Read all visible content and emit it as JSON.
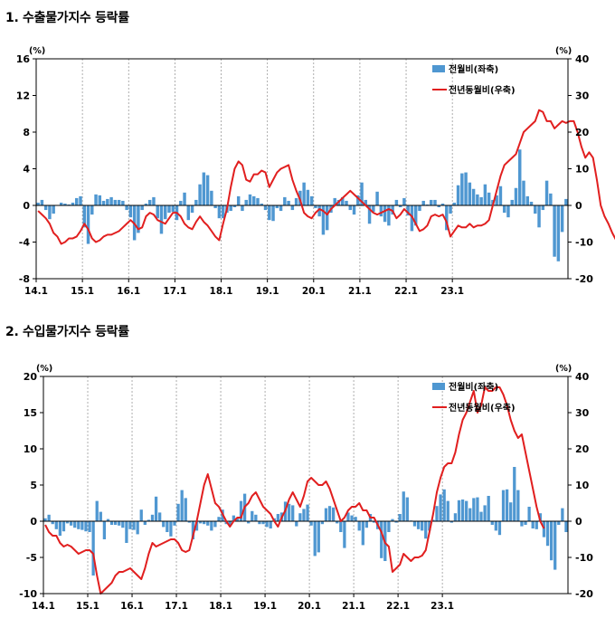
{
  "sections": [
    {
      "title": "1. 수출물가지수 등락률"
    },
    {
      "title": "2. 수입물가지수 등락률"
    }
  ],
  "colors": {
    "bar": "#4F97D1",
    "line": "#E11F1F",
    "grid": "#9a9a9a"
  },
  "chart_data": [
    {
      "type": "bar+line",
      "title": "1. 수출물가지수 등락률",
      "left_unit": "(%)",
      "right_unit": "(%)",
      "x_tick_labels": [
        "14.1",
        "15.1",
        "16.1",
        "17.1",
        "18.1",
        "19.1",
        "20.1",
        "21.1",
        "22.1",
        "23.1"
      ],
      "y_left": {
        "min": -8,
        "max": 16,
        "ticks": [
          16,
          12,
          8,
          4,
          0,
          -4,
          -8
        ]
      },
      "y_right": {
        "min": -20,
        "max": 40,
        "ticks": [
          40,
          30,
          20,
          10,
          0,
          -10,
          -20
        ]
      },
      "grid_vertical_dashed": true,
      "legend_position": "top-right",
      "legend": {
        "bar": "전월비(좌축)",
        "line": "전년동월비(우축)"
      },
      "series": [
        {
          "name": "전월비(좌축)",
          "axis": "left",
          "kind": "bar",
          "values": [
            0.3,
            0.6,
            -0.5,
            -1.5,
            -0.9,
            0,
            0.3,
            0.2,
            0.1,
            0.3,
            0.8,
            1.0,
            -2.4,
            -4.2,
            -1.0,
            1.2,
            1.1,
            0.5,
            0.7,
            0.9,
            0.6,
            0.6,
            0.5,
            -0.5,
            -1.3,
            -3.8,
            -3.0,
            -0.5,
            0.2,
            0.6,
            0.9,
            -1.4,
            -3.1,
            -1.5,
            -0.8,
            -0.7,
            -1.6,
            0.5,
            1.4,
            -1.6,
            -0.8,
            0.6,
            2.3,
            3.6,
            3.3,
            1.6,
            -0.3,
            -1.4,
            -1.4,
            -0.8,
            -0.6,
            -0.2,
            1.0,
            -0.6,
            0.6,
            1.2,
            1.0,
            0.8,
            0.2,
            -0.5,
            -1.6,
            -1.7,
            -0.3,
            -0.6,
            0.9,
            0.5,
            -0.5,
            0.8,
            1.6,
            2.5,
            1.7,
            1.0,
            -0.3,
            -1.2,
            -3.2,
            -2.7,
            -0.8,
            0.8,
            0.6,
            0.9,
            0.5,
            -0.5,
            -1.0,
            1.1,
            2.5,
            0.6,
            -2.0,
            -0.7,
            1.5,
            -1.2,
            -1.8,
            -2.2,
            -1.0,
            0.6,
            -0.2,
            0.8,
            -1.1,
            -2.8,
            -2.2,
            -0.6,
            0.5,
            0.1,
            0.6,
            0.6,
            -0.2,
            0.2,
            -2.7,
            -0.9,
            0.3,
            2.2,
            3.5,
            3.6,
            2.5,
            1.8,
            1.2,
            0.9,
            2.3,
            1.4,
            0.6,
            1.1,
            2.1,
            -0.8,
            -1.3,
            0.6,
            1.9,
            6.1,
            2.7,
            1.0,
            0.4,
            -0.9,
            -2.4,
            -0.5,
            2.7,
            1.3,
            -5.6,
            -6.1,
            -2.9,
            0.7
          ]
        },
        {
          "name": "전년동월비(우축)",
          "axis": "right",
          "kind": "line",
          "values": [
            -1.5,
            -2.5,
            -3.5,
            -5,
            -7.5,
            -8.5,
            -10.5,
            -10,
            -9,
            -9,
            -8.5,
            -7,
            -5,
            -6.5,
            -9,
            -10,
            -9.5,
            -8.5,
            -8,
            -8,
            -7.5,
            -7,
            -6,
            -5,
            -4,
            -5,
            -6.5,
            -6,
            -3,
            -2,
            -2.5,
            -4,
            -4.5,
            -5,
            -3.5,
            -2,
            -2,
            -3,
            -5,
            -6,
            -6.5,
            -4.5,
            -3,
            -4.5,
            -5.5,
            -7,
            -8.5,
            -9.5,
            -5,
            -1,
            5,
            10,
            12,
            11,
            7,
            6.5,
            8.5,
            8.5,
            9.5,
            9,
            5,
            7,
            9,
            10,
            10.5,
            11,
            7,
            4,
            1.5,
            -2,
            -3,
            -3.5,
            -2,
            -1,
            -1.5,
            -2.5,
            -1,
            0,
            1,
            2,
            3,
            4,
            3,
            2,
            1,
            0,
            -1,
            -2,
            -2.5,
            -2,
            -1.5,
            -1,
            -1.5,
            -3.5,
            -2.5,
            -1,
            -2,
            -3,
            -5,
            -7,
            -6.5,
            -5.5,
            -3,
            -2.5,
            -3,
            -2.5,
            -4.5,
            -8.5,
            -7,
            -5.5,
            -6,
            -6,
            -5,
            -6,
            -5.5,
            -5.5,
            -5,
            -4,
            0,
            4,
            8,
            11,
            12,
            13,
            14,
            17,
            20,
            21,
            22,
            23,
            26,
            25.5,
            23,
            23,
            21,
            22,
            23,
            22.5,
            23,
            23,
            20,
            16,
            13,
            14.5,
            13,
            7,
            0,
            -3,
            -5,
            -7.5,
            -9.5,
            -10
          ]
        }
      ]
    },
    {
      "type": "bar+line",
      "title": "2. 수입물가지수 등락률",
      "left_unit": "(%)",
      "right_unit": "(%)",
      "x_tick_labels": [
        "14.1",
        "15.1",
        "16.1",
        "17.1",
        "18.1",
        "19.1",
        "20.1",
        "21.1",
        "22.1",
        "23.1"
      ],
      "y_left": {
        "min": -10,
        "max": 20,
        "ticks": [
          20,
          15,
          10,
          5,
          0,
          -5,
          -10
        ]
      },
      "y_right": {
        "min": -20,
        "max": 40,
        "ticks": [
          40,
          30,
          20,
          10,
          0,
          -10,
          -20
        ]
      },
      "grid_vertical_dashed": true,
      "legend_position": "top-right",
      "legend": {
        "bar": "전월비(좌축)",
        "line": "전년동월비(우축)"
      },
      "series": [
        {
          "name": "전월비(좌축)",
          "axis": "left",
          "kind": "bar",
          "values": [
            0.4,
            0.9,
            -0.4,
            -1.1,
            -2.0,
            -1.4,
            -0.3,
            -0.6,
            -0.9,
            -1.1,
            -1.2,
            -1.4,
            -1.5,
            -7.5,
            2.8,
            1.3,
            -2.5,
            0.3,
            -0.5,
            -0.5,
            -0.6,
            -0.9,
            -3.0,
            -1.1,
            -1.2,
            -1.8,
            1.6,
            -0.5,
            0.2,
            0.9,
            3.4,
            1.2,
            -0.8,
            -1.5,
            -2.1,
            -0.6,
            2.4,
            4.3,
            3.2,
            -0.2,
            -2.5,
            -1.3,
            -0.3,
            -0.4,
            -0.6,
            -1.3,
            -0.8,
            0.6,
            1.6,
            -0.4,
            -0.6,
            0.8,
            0.5,
            2.8,
            3.8,
            -0.3,
            1.4,
            0.9,
            -0.4,
            -0.4,
            -0.8,
            -1.0,
            0.4,
            1.0,
            1.2,
            2.7,
            2.4,
            2.2,
            -0.7,
            1.1,
            1.7,
            2.3,
            -0.6,
            -4.8,
            -4.3,
            -0.4,
            1.8,
            2.1,
            1.9,
            -0.3,
            -1.5,
            -3.7,
            1.2,
            0.8,
            0.6,
            -1.3,
            -3.3,
            -0.9,
            1.0,
            -0.2,
            -1.1,
            -5.1,
            -5.5,
            -1.5,
            0.3,
            -0.2,
            1.0,
            4.1,
            3.3,
            0.1,
            -0.7,
            -1.1,
            -1.3,
            -2.4,
            -1.3,
            0.2,
            2.1,
            3.7,
            4.4,
            2.8,
            -0.2,
            1.1,
            2.9,
            3.0,
            2.8,
            1.8,
            3.2,
            3.3,
            1.3,
            2.2,
            3.5,
            -0.5,
            -1.3,
            -1.9,
            4.3,
            4.4,
            2.6,
            7.5,
            4.3,
            -0.7,
            -0.5,
            2.0,
            -1.0,
            -1.1,
            1.1,
            -2.2,
            -3.4,
            -5.4,
            -6.7,
            -0.5,
            1.8,
            -1.5
          ]
        },
        {
          "name": "전년동월비(우축)",
          "axis": "right",
          "kind": "line",
          "values": [
            -1,
            -3,
            -4,
            -4,
            -6,
            -7,
            -6.5,
            -7,
            -8,
            -9,
            -8.5,
            -8,
            -8,
            -9,
            -15,
            -20,
            -19,
            -18,
            -17,
            -15,
            -14,
            -14,
            -13.5,
            -13,
            -14,
            -15,
            -16,
            -13,
            -9,
            -6,
            -7,
            -6.5,
            -6,
            -5.5,
            -5,
            -5,
            -6,
            -8,
            -8.5,
            -8,
            -4,
            0,
            5,
            10,
            13,
            9,
            5,
            4,
            2,
            0,
            -1.5,
            0,
            1,
            1,
            4,
            5,
            7,
            8,
            6,
            4,
            3,
            2,
            0,
            -1.5,
            1,
            3,
            6,
            8,
            6,
            4,
            7,
            11,
            12,
            11,
            10,
            10,
            11,
            9,
            6,
            3,
            0,
            1,
            3,
            4,
            4,
            5,
            3,
            3,
            1,
            1,
            -1,
            -3,
            -6,
            -7,
            -14,
            -13,
            -12,
            -9,
            -10,
            -11,
            -10,
            -10,
            -9.5,
            -8,
            -3,
            2,
            8,
            12,
            15,
            16,
            16,
            19,
            24,
            28,
            30,
            33,
            36,
            30,
            32,
            37,
            36,
            36,
            37,
            37,
            35,
            32,
            28,
            25,
            23,
            24,
            19,
            14,
            9,
            4,
            0,
            -2
          ]
        }
      ]
    }
  ]
}
